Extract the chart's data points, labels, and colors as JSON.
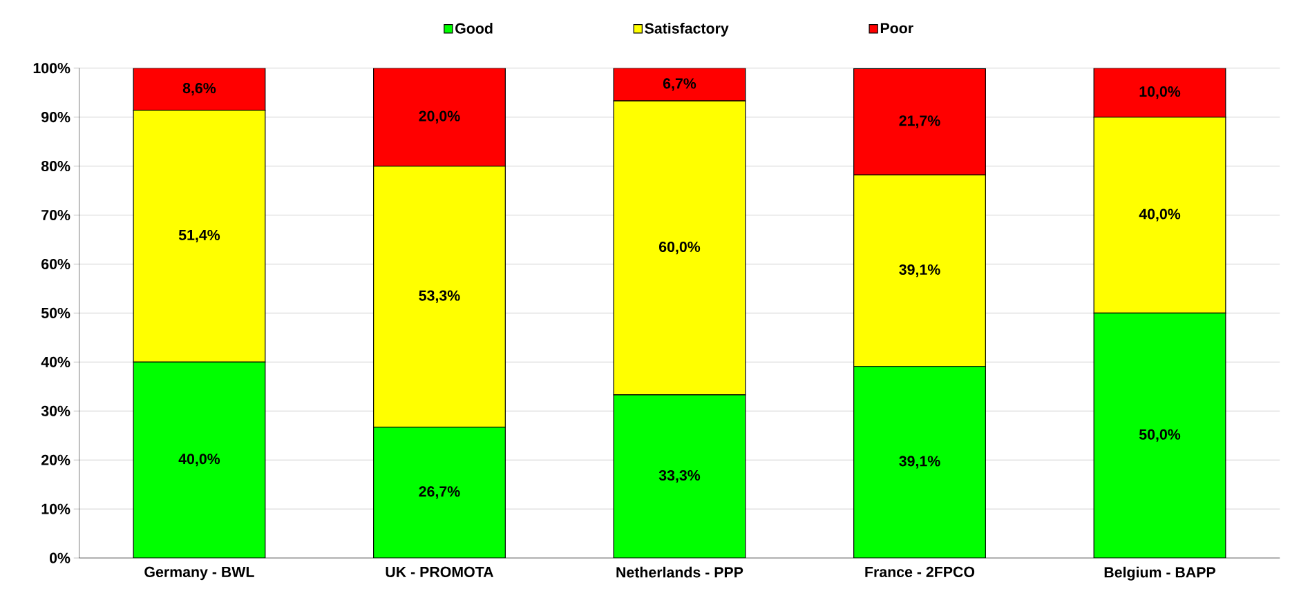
{
  "chart_data": {
    "type": "bar",
    "stacked": true,
    "categories": [
      "Germany - BWL",
      "UK - PROMOTA",
      "Netherlands - PPP",
      "France - 2FPCO",
      "Belgium - BAPP"
    ],
    "series": [
      {
        "name": "Good",
        "color": "#00ff00",
        "values": [
          40.0,
          26.7,
          33.3,
          39.1,
          50.0
        ],
        "value_labels": [
          "40,0%",
          "26,7%",
          "33,3%",
          "39,1%",
          "50,0%"
        ]
      },
      {
        "name": "Satisfactory",
        "color": "#ffff00",
        "values": [
          51.4,
          53.3,
          60.0,
          39.1,
          40.0
        ],
        "value_labels": [
          "51,4%",
          "53,3%",
          "60,0%",
          "39,1%",
          "40,0%"
        ]
      },
      {
        "name": "Poor",
        "color": "#ff0000",
        "values": [
          8.6,
          20.0,
          6.7,
          21.7,
          10.0
        ],
        "value_labels": [
          "8,6%",
          "20,0%",
          "6,7%",
          "21,7%",
          "10,0%"
        ]
      }
    ],
    "ylim": [
      0,
      100
    ],
    "yticks": [
      {
        "value": 0,
        "label": "0%"
      },
      {
        "value": 10,
        "label": "10%"
      },
      {
        "value": 20,
        "label": "20%"
      },
      {
        "value": 30,
        "label": "30%"
      },
      {
        "value": 40,
        "label": "40%"
      },
      {
        "value": 50,
        "label": "50%"
      },
      {
        "value": 60,
        "label": "60%"
      },
      {
        "value": 70,
        "label": "70%"
      },
      {
        "value": 80,
        "label": "80%"
      },
      {
        "value": 90,
        "label": "90%"
      },
      {
        "value": 100,
        "label": "100%"
      }
    ],
    "grid": "y",
    "legend": "top"
  }
}
